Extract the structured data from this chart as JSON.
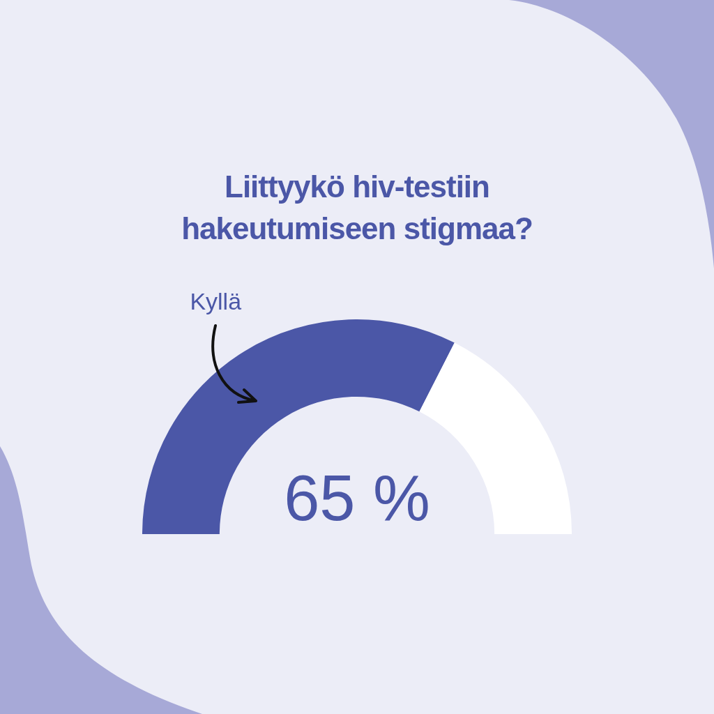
{
  "chart_data": {
    "type": "donut",
    "title": "Liittyykö hiv-testiin hakeutumiseen stigmaa?",
    "categories": [
      "Kyllä",
      null
    ],
    "values": [
      65,
      35
    ],
    "colors": [
      "#4b57a7",
      "#ffffff"
    ],
    "value_labels": [
      "65 %",
      null
    ]
  }
}
